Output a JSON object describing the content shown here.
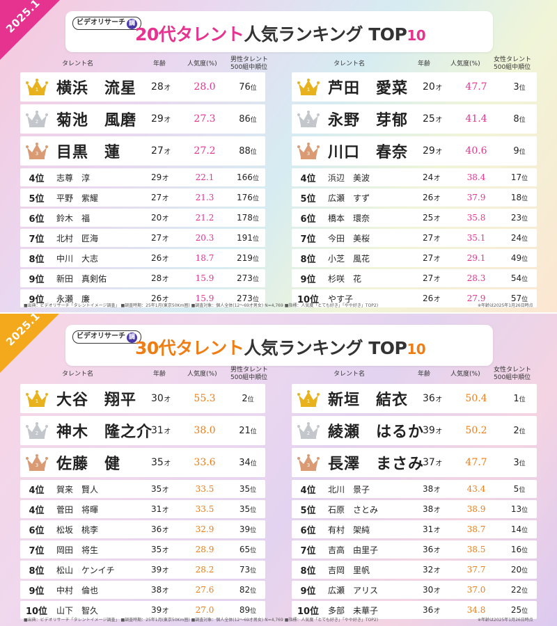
{
  "colors": {
    "pink_accent": "#e6338f",
    "orange_accent": "#ef7d16",
    "gold_crown": "#e8b21e",
    "silver_crown": "#c3c6cb",
    "bronze_crown": "#d99a74"
  },
  "sections": [
    {
      "corner_label": "2025.1",
      "logo_text": "ビデオリサーチ",
      "logo_mark": "調",
      "title_accent": "20代タレント",
      "title_rest": "人気ランキング TOP",
      "title_num": "10",
      "headers": {
        "left": {
          "name": "タレント名",
          "age": "年齢",
          "pop": "人気度(%)",
          "gen_l1": "男性タレント",
          "gen_l2": "500組中順位"
        },
        "right": {
          "name": "タレント名",
          "age": "年齢",
          "pop": "人気度(%)",
          "gen_l1": "女性タレント",
          "gen_l2": "500組中順位"
        }
      },
      "age_unit": "才",
      "rank_unit": "位",
      "left": [
        {
          "rank": "1",
          "name": "横浜　流星",
          "age": "28",
          "pop": "28.0",
          "gen": "76"
        },
        {
          "rank": "2",
          "name": "菊池　風磨",
          "age": "29",
          "pop": "27.3",
          "gen": "86"
        },
        {
          "rank": "3",
          "name": "目黒　蓮",
          "age": "27",
          "pop": "27.2",
          "gen": "88"
        },
        {
          "rank": "4位",
          "name": "志尊　淳",
          "age": "29",
          "pop": "22.1",
          "gen": "166"
        },
        {
          "rank": "5位",
          "name": "平野　紫耀",
          "age": "27",
          "pop": "21.3",
          "gen": "176"
        },
        {
          "rank": "6位",
          "name": "鈴木　福",
          "age": "20",
          "pop": "21.2",
          "gen": "178"
        },
        {
          "rank": "7位",
          "name": "北村　匠海",
          "age": "27",
          "pop": "20.3",
          "gen": "191"
        },
        {
          "rank": "8位",
          "name": "中川　大志",
          "age": "26",
          "pop": "18.7",
          "gen": "219"
        },
        {
          "rank": "9位",
          "name": "新田　真剣佑",
          "age": "28",
          "pop": "15.9",
          "gen": "273"
        },
        {
          "rank": "9位",
          "name": "永瀬　廉",
          "age": "26",
          "pop": "15.9",
          "gen": "273"
        }
      ],
      "right": [
        {
          "rank": "1",
          "name": "芦田　愛菜",
          "age": "20",
          "pop": "47.7",
          "gen": "3"
        },
        {
          "rank": "2",
          "name": "永野　芽郁",
          "age": "25",
          "pop": "41.4",
          "gen": "8"
        },
        {
          "rank": "3",
          "name": "川口　春奈",
          "age": "29",
          "pop": "40.6",
          "gen": "9"
        },
        {
          "rank": "4位",
          "name": "浜辺　美波",
          "age": "24",
          "pop": "38.4",
          "gen": "17"
        },
        {
          "rank": "5位",
          "name": "広瀬　すず",
          "age": "26",
          "pop": "37.9",
          "gen": "18"
        },
        {
          "rank": "6位",
          "name": "橋本　環奈",
          "age": "25",
          "pop": "35.8",
          "gen": "23"
        },
        {
          "rank": "7位",
          "name": "今田　美桜",
          "age": "27",
          "pop": "35.1",
          "gen": "24"
        },
        {
          "rank": "8位",
          "name": "小芝　風花",
          "age": "27",
          "pop": "29.1",
          "gen": "49"
        },
        {
          "rank": "9位",
          "name": "杉咲　花",
          "age": "27",
          "pop": "28.3",
          "gen": "54"
        },
        {
          "rank": "10位",
          "name": "やす子",
          "age": "26",
          "pop": "27.9",
          "gen": "57"
        }
      ],
      "footnote": "■出典：ビデオリサーチ「タレントイメージ調査」 ■調査時期：25年1月(東京50Km圏) ■調査対象：個人全体(12～69才男女) N=4,769 ■指標：人気度「とても好き」「やや好き」TOP2)",
      "footnote_right": "※年齢は2025年1月26日時点"
    },
    {
      "corner_label": "2025.1",
      "logo_text": "ビデオリサーチ",
      "logo_mark": "調",
      "title_accent": "30代タレント",
      "title_rest": "人気ランキング TOP",
      "title_num": "10",
      "headers": {
        "left": {
          "name": "タレント名",
          "age": "年齢",
          "pop": "人気度(%)",
          "gen_l1": "男性タレント",
          "gen_l2": "500組中順位"
        },
        "right": {
          "name": "タレント名",
          "age": "年齢",
          "pop": "人気度(%)",
          "gen_l1": "女性タレント",
          "gen_l2": "500組中順位"
        }
      },
      "age_unit": "才",
      "rank_unit": "位",
      "left": [
        {
          "rank": "1",
          "name": "大谷　翔平",
          "age": "30",
          "pop": "55.3",
          "gen": "2"
        },
        {
          "rank": "2",
          "name": "神木　隆之介",
          "age": "31",
          "pop": "38.0",
          "gen": "21"
        },
        {
          "rank": "3",
          "name": "佐藤　健",
          "age": "35",
          "pop": "33.6",
          "gen": "34"
        },
        {
          "rank": "4位",
          "name": "賀来　賢人",
          "age": "35",
          "pop": "33.5",
          "gen": "35"
        },
        {
          "rank": "4位",
          "name": "菅田　将暉",
          "age": "31",
          "pop": "33.5",
          "gen": "35"
        },
        {
          "rank": "6位",
          "name": "松坂　桃李",
          "age": "36",
          "pop": "32.9",
          "gen": "39"
        },
        {
          "rank": "7位",
          "name": "岡田　将生",
          "age": "35",
          "pop": "28.9",
          "gen": "65"
        },
        {
          "rank": "8位",
          "name": "松山　ケンイチ",
          "age": "39",
          "pop": "28.2",
          "gen": "73"
        },
        {
          "rank": "9位",
          "name": "中村　倫也",
          "age": "38",
          "pop": "27.6",
          "gen": "82"
        },
        {
          "rank": "10位",
          "name": "山下　智久",
          "age": "39",
          "pop": "27.0",
          "gen": "89"
        }
      ],
      "right": [
        {
          "rank": "1",
          "name": "新垣　結衣",
          "age": "36",
          "pop": "50.4",
          "gen": "1"
        },
        {
          "rank": "2",
          "name": "綾瀬　はるか",
          "age": "39",
          "pop": "50.2",
          "gen": "2"
        },
        {
          "rank": "3",
          "name": "長澤　まさみ",
          "age": "37",
          "pop": "47.7",
          "gen": "3"
        },
        {
          "rank": "4位",
          "name": "北川　景子",
          "age": "38",
          "pop": "43.4",
          "gen": "5"
        },
        {
          "rank": "5位",
          "name": "石原　さとみ",
          "age": "38",
          "pop": "38.9",
          "gen": "13"
        },
        {
          "rank": "6位",
          "name": "有村　架純",
          "age": "31",
          "pop": "38.7",
          "gen": "14"
        },
        {
          "rank": "7位",
          "name": "吉高　由里子",
          "age": "36",
          "pop": "38.5",
          "gen": "16"
        },
        {
          "rank": "8位",
          "name": "吉岡　里帆",
          "age": "32",
          "pop": "37.7",
          "gen": "20"
        },
        {
          "rank": "9位",
          "name": "広瀬　アリス",
          "age": "30",
          "pop": "37.0",
          "gen": "22"
        },
        {
          "rank": "10位",
          "name": "多部　未華子",
          "age": "36",
          "pop": "34.8",
          "gen": "25"
        }
      ],
      "footnote": "■出典：ビデオリサーチ「タレントイメージ調査」 ■調査時期：25年1月(東京50Km圏) ■調査対象：個人全体(12～69才男女) N=4,769 ■指標：人気度「とても好き」「やや好き」TOP2)",
      "footnote_right": "※年齢は2025年1月26日時点"
    }
  ]
}
